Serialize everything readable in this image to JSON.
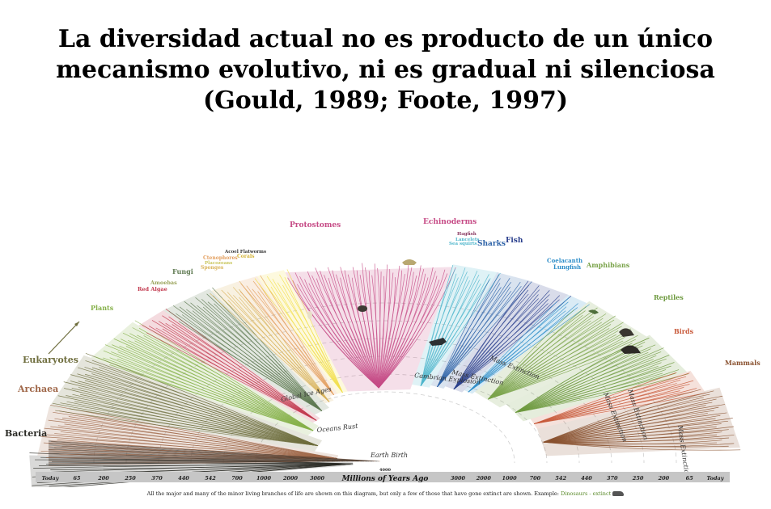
{
  "title": {
    "line1": "La diversidad actual no es producto de un único",
    "line2": "mecanismo evolutivo, ni es gradual ni silenciosa",
    "line3": "(Gould, 1989; Foote, 1997)"
  },
  "colors": {
    "bacteria": "#2b2b26",
    "archaea": "#a0684a",
    "eukaryotes": "#6f6e3e",
    "plants": "#86b14a",
    "algae": "#c23a4f",
    "fungi": "#5f7a52",
    "sponges": "#d8b35a",
    "ctenophores": "#e39f5e",
    "placozoans": "#c9c65d",
    "corals": "#f2df4a",
    "protostomes": "#c64b86",
    "echinoderms": "#c64b86",
    "sea_squirts": "#4fb6cc",
    "sharks": "#2e63a8",
    "fish": "#2a3f8d",
    "coelacanth": "#2f8ec9",
    "amphibians": "#7aa34a",
    "reptiles": "#6e9a3f",
    "birds": "#c8593a",
    "mammals": "#8a5230"
  },
  "diagram": {
    "groups": {
      "bacteria": "Bacteria",
      "archaea": "Archaea",
      "eukaryotes": "Eukaryotes",
      "plants": "Plants",
      "red_algae": "Red Algae",
      "amoebas": "Amoebas",
      "fungi": "Fungi",
      "sponges": "Sponges",
      "ctenophores": "Ctenophores",
      "placozoans": "Placozoans",
      "corals": "Corals",
      "acoel_flatworms": "Acoel Flatworms",
      "protostomes": "Protostomes",
      "echinoderms": "Echinoderms",
      "sea_squirts": "Sea squirts",
      "lancelets": "Lancelets",
      "hagfish": "Hagfish",
      "sharks": "Sharks",
      "fish": "Fish",
      "coelacanth": "Coelacanth",
      "lungfish": "Lungfish",
      "amphibians": "Amphibians",
      "reptiles": "Reptiles",
      "birds": "Birds",
      "mammals": "Mammals"
    },
    "events": {
      "mass1": "Mass Extinction",
      "mass2": "Mass Extinction",
      "mass3": "Mass Extinction",
      "mass4": "Mass Extinction",
      "mass5": "Mass Extinction",
      "cambrian": "Cambrian Explosion",
      "ice": "Global Ice Ages",
      "oceans": "Oceans Rust",
      "earth": "Earth Birth"
    },
    "timeline": {
      "axis_label": "Millions of Years Ago",
      "center_tick": "4000",
      "left_ticks": [
        "Today",
        "65",
        "200",
        "250",
        "370",
        "440",
        "542",
        "700",
        "1000",
        "2000",
        "3000"
      ],
      "right_ticks": [
        "3000",
        "2000",
        "1000",
        "700",
        "542",
        "440",
        "370",
        "250",
        "200",
        "65",
        "Today"
      ]
    }
  },
  "footnote": {
    "text": "All the major and many of the minor living branches of life are shown on this diagram, but only a few of those that have gone extinct are shown. Example:",
    "highlight": "Dinosaurs - extinct"
  }
}
